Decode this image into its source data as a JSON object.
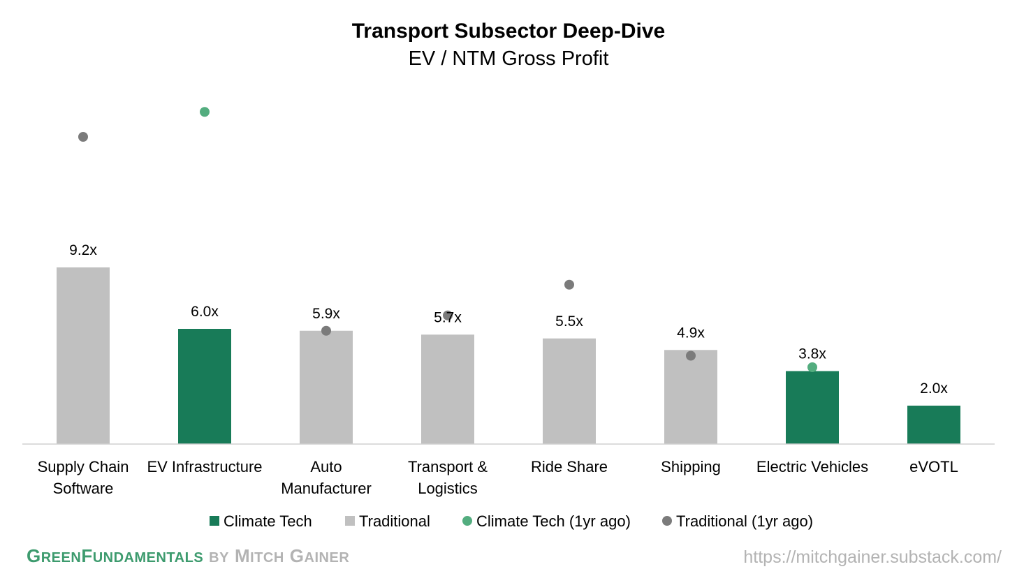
{
  "chart_data": {
    "type": "bar",
    "title": "Transport Subsector Deep-Dive",
    "subtitle": "EV / NTM Gross Profit",
    "categories": [
      [
        "Supply Chain",
        "Software"
      ],
      [
        "EV Infrastructure"
      ],
      [
        "Auto",
        "Manufacturer"
      ],
      [
        "Transport &",
        "Logistics"
      ],
      [
        "Ride Share"
      ],
      [
        "Shipping"
      ],
      [
        "Electric Vehicles"
      ],
      [
        "eVOTL"
      ]
    ],
    "values": [
      9.2,
      6.0,
      5.9,
      5.7,
      5.5,
      4.9,
      3.8,
      2.0
    ],
    "value_labels": [
      "9.2x",
      "6.0x",
      "5.9x",
      "5.7x",
      "5.5x",
      "4.9x",
      "3.8x",
      "2.0x"
    ],
    "bar_series": [
      "Traditional",
      "Climate Tech",
      "Traditional",
      "Traditional",
      "Traditional",
      "Traditional",
      "Climate Tech",
      "Climate Tech"
    ],
    "year_ago_values": [
      16.0,
      17.3,
      5.9,
      6.7,
      8.3,
      4.6,
      4.0,
      null
    ],
    "year_ago_series": [
      "Traditional (1yr ago)",
      "Climate Tech (1yr ago)",
      "Traditional (1yr ago)",
      "Traditional (1yr ago)",
      "Traditional (1yr ago)",
      "Traditional (1yr ago)",
      "Climate Tech (1yr ago)",
      null
    ],
    "ylim": [
      0,
      20
    ],
    "grid": false,
    "legend_position": "bottom",
    "legend": [
      {
        "name": "Climate Tech",
        "marker": "square",
        "color": "#187b58"
      },
      {
        "name": "Traditional",
        "marker": "square",
        "color": "#c0c0c0"
      },
      {
        "name": "Climate Tech (1yr ago)",
        "marker": "circle",
        "color": "#53ad7f"
      },
      {
        "name": "Traditional (1yr ago)",
        "marker": "circle",
        "color": "#7b7b7b"
      }
    ],
    "colors": {
      "Climate Tech": "#187b58",
      "Traditional": "#c0c0c0",
      "Climate Tech (1yr ago)": "#53ad7f",
      "Traditional (1yr ago)": "#7b7b7b"
    }
  },
  "footer": {
    "brand_part1_cap": "G",
    "brand_part1_rest": "REEN",
    "brand_part2_cap": "F",
    "brand_part2_rest": "UNDAMENTALS",
    "brand_by": "BY",
    "brand_author_first_cap": "M",
    "brand_author_first_rest": "ITCH",
    "brand_author_last_cap": "G",
    "brand_author_last_rest": "AINER",
    "url": "https://mitchgainer.substack.com/"
  }
}
